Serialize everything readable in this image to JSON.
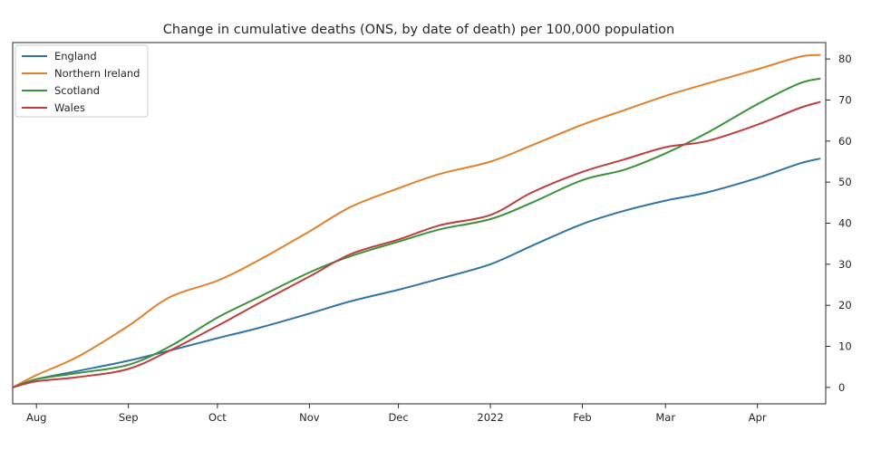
{
  "chart_data": {
    "type": "line",
    "title": "Change in cumulative deaths (ONS, by date of death) per 100,000 population",
    "xlabel": "",
    "ylabel": "",
    "x_range": [
      "2021-07-24",
      "2022-04-24"
    ],
    "ylim": [
      -4,
      84
    ],
    "yticks": [
      0,
      10,
      20,
      30,
      40,
      50,
      60,
      70,
      80
    ],
    "y_axis_side": "right",
    "x_ticks": [
      {
        "date": "2021-08-01",
        "label": "Aug"
      },
      {
        "date": "2021-09-01",
        "label": "Sep"
      },
      {
        "date": "2021-10-01",
        "label": "Oct"
      },
      {
        "date": "2021-11-01",
        "label": "Nov"
      },
      {
        "date": "2021-12-01",
        "label": "Dec"
      },
      {
        "date": "2022-01-01",
        "label": "2022"
      },
      {
        "date": "2022-02-01",
        "label": "Feb"
      },
      {
        "date": "2022-03-01",
        "label": "Mar"
      },
      {
        "date": "2022-04-01",
        "label": "Apr"
      }
    ],
    "grid": false,
    "legend_position": "top-left",
    "x": [
      "2021-07-24",
      "2021-08-01",
      "2021-08-15",
      "2021-09-01",
      "2021-09-15",
      "2021-10-01",
      "2021-10-15",
      "2021-11-01",
      "2021-11-15",
      "2021-12-01",
      "2021-12-15",
      "2022-01-01",
      "2022-01-15",
      "2022-02-01",
      "2022-02-15",
      "2022-03-01",
      "2022-03-15",
      "2022-04-01",
      "2022-04-15",
      "2022-04-22"
    ],
    "series": [
      {
        "name": "England",
        "color": "#3274a1",
        "values": [
          0,
          2,
          4,
          6.5,
          9,
          12,
          14.5,
          18,
          21,
          23.8,
          26.5,
          30,
          34.5,
          39.8,
          43,
          45.5,
          47.5,
          51,
          54.5,
          55.7
        ]
      },
      {
        "name": "Northern Ireland",
        "color": "#e1812c",
        "values": [
          0,
          3,
          7.5,
          15,
          22,
          26,
          31,
          38,
          44,
          48.5,
          52,
          55,
          59,
          64,
          67.5,
          71,
          74,
          77.5,
          80.5,
          81
        ]
      },
      {
        "name": "Scotland",
        "color": "#3a923a",
        "values": [
          0,
          2,
          3.5,
          5.5,
          10,
          17,
          22,
          28,
          32,
          35.5,
          38.5,
          41,
          45,
          50.5,
          53,
          57,
          62,
          69,
          74,
          75.2
        ]
      },
      {
        "name": "Wales",
        "color": "#c03d3e",
        "values": [
          0,
          1.5,
          2.5,
          4.5,
          9,
          15,
          20.5,
          27,
          32.5,
          36,
          39.5,
          42,
          47.5,
          52.5,
          55.5,
          58.5,
          60,
          64,
          68,
          69.5
        ]
      }
    ]
  }
}
